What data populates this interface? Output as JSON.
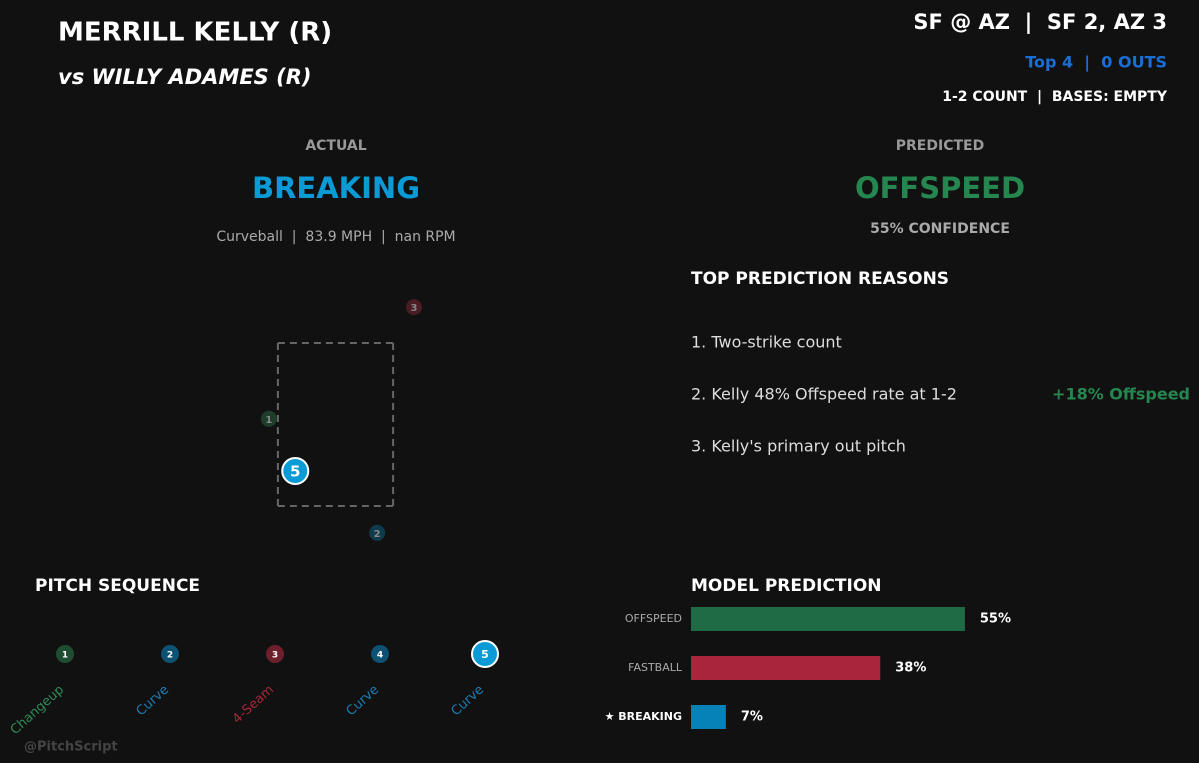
{
  "header": {
    "pitcher": "MERRILL KELLY (R)",
    "batter": "vs WILLY ADAMES (R)",
    "matchup": "SF @ AZ  |  SF 2, AZ 3",
    "inning": "Top 4  |  0 OUTS",
    "count": "1-2 COUNT  |  BASES: EMPTY"
  },
  "actual": {
    "label": "ACTUAL",
    "pitch_type": "BREAKING",
    "details": "Curveball  |  83.9 MPH  |  nan RPM"
  },
  "predicted": {
    "label": "PREDICTED",
    "pitch_type": "OFFSPEED",
    "confidence": "55% CONFIDENCE"
  },
  "reasons": {
    "title": "TOP PREDICTION REASONS",
    "items": [
      {
        "text": "1.  Two-strike count"
      },
      {
        "text": "2.  Kelly 48% Offspeed rate at 1-2",
        "impact": "+18% Offspeed"
      },
      {
        "text": "3.  Kelly's primary out pitch"
      }
    ]
  },
  "sequence": {
    "title": "PITCH SEQUENCE",
    "current": 4,
    "pitches": [
      {
        "number": "1",
        "type": "Changeup",
        "color": "#1f4d31",
        "label_color": "#2e8b57"
      },
      {
        "number": "2",
        "type": "Curve",
        "color": "#0d5273",
        "label_color": "#1a7fb5"
      },
      {
        "number": "3",
        "type": "4-Seam",
        "color": "#6e1f2c",
        "label_color": "#a8283b"
      },
      {
        "number": "4",
        "type": "Curve",
        "color": "#0d5273",
        "label_color": "#1a7fb5"
      },
      {
        "number": "5",
        "type": "Curve",
        "color": "#0a9bd6",
        "label_color": "#1a7fb5"
      }
    ]
  },
  "watermark": "@PitchScript",
  "chart_data": [
    {
      "type": "scatter",
      "x": [
        -0.96,
        0.6,
        1.13,
        -0.58
      ],
      "values": [
        2.57,
        1.17,
        3.94,
        1.93
      ],
      "point_labels": [
        "1",
        "2",
        "3",
        "5"
      ],
      "colors": [
        "#1e3d2a",
        "#0e3a4e",
        "#4a1c24",
        "#0a9bd6"
      ],
      "current": 3,
      "xlim": [
        -2.5,
        2.5
      ],
      "ylim": [
        0.5,
        4.5
      ],
      "strike_zone": {
        "x": [
          -0.83,
          0.83
        ],
        "y": [
          1.5,
          3.5
        ]
      }
    },
    {
      "type": "bar",
      "orientation": "horizontal",
      "title": "MODEL PREDICTION",
      "categories": [
        "OFFSPEED",
        "FASTBALL",
        "★ BREAKING"
      ],
      "values": [
        55,
        38,
        7
      ],
      "value_labels": [
        "55%",
        "38%",
        "7%"
      ],
      "colors": [
        "#1e6b45",
        "#a8253b",
        "#0782b8"
      ],
      "highlight": 2,
      "xlim": [
        0,
        100
      ]
    }
  ]
}
